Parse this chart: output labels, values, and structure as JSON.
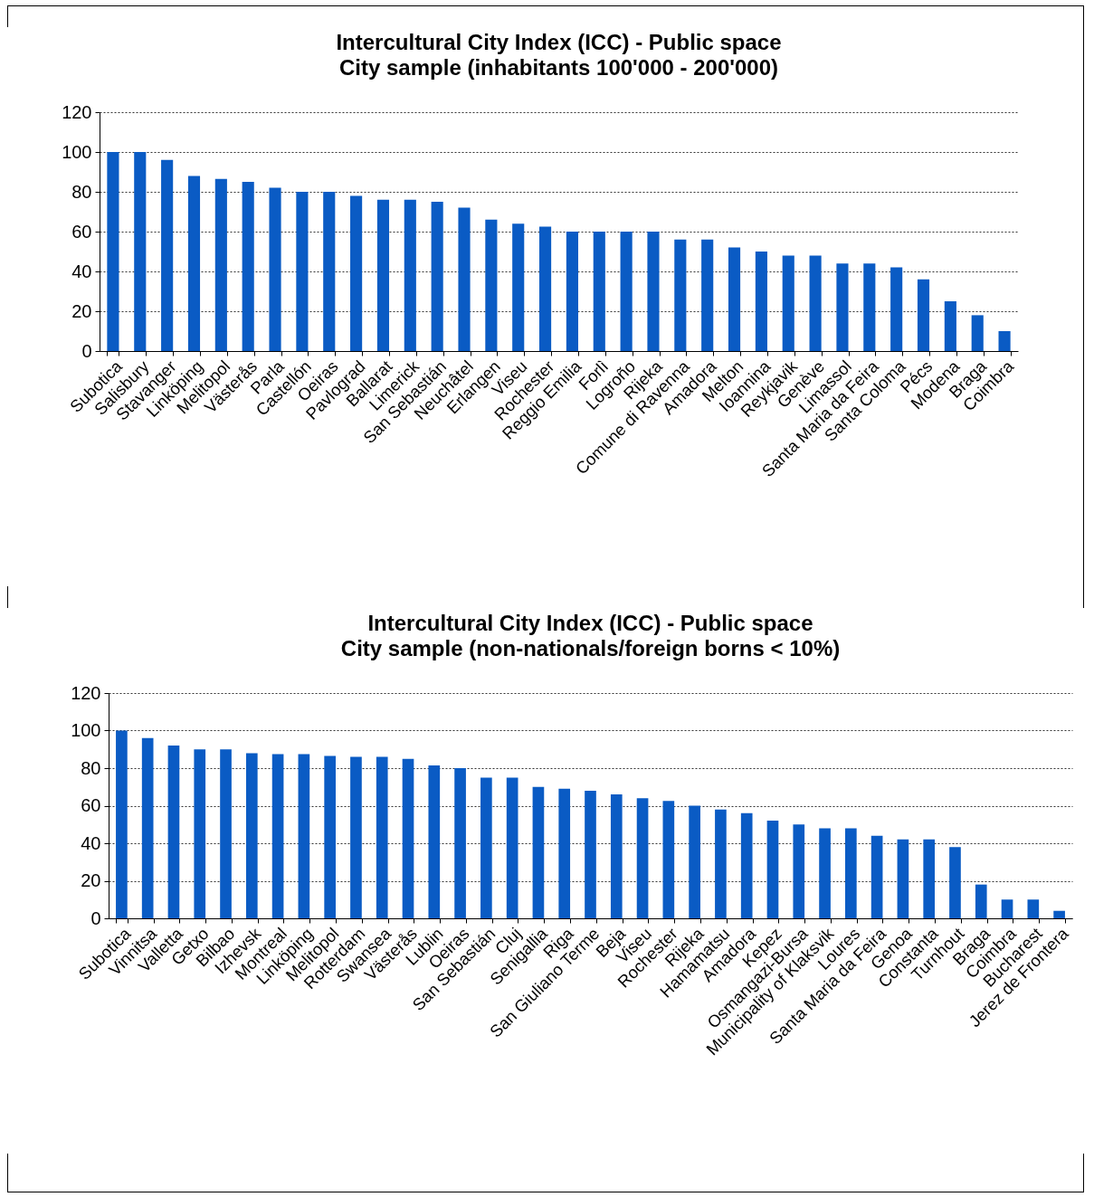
{
  "chart_data": [
    {
      "type": "bar",
      "title": "Intercultural City Index (ICC) - Public space",
      "subtitle": "City sample (inhabitants 100'000 - 200'000)",
      "categories": [
        "Subotica",
        "Salisbury",
        "Stavanger",
        "Linköping",
        "Melitopol",
        "Västerås",
        "Parla",
        "Castellón",
        "Oeiras",
        "Pavlograd",
        "Ballarat",
        "Limerick",
        "San Sebastián",
        "Neuchâtel",
        "Erlangen",
        "Viseu",
        "Rochester",
        "Reggio Emilia",
        "Forlì",
        "Logroño",
        "Rijeka",
        "Comune di Ravenna",
        "Amadora",
        "Melton",
        "Ioannina",
        "Reykjavik",
        "Genève",
        "Limassol",
        "Santa Maria da Feira",
        "Santa Coloma",
        "Pécs",
        "Modena",
        "Braga",
        "Coimbra"
      ],
      "values": [
        100,
        100,
        96,
        88,
        86.5,
        85,
        82,
        80,
        80,
        78,
        76,
        76,
        75,
        72,
        66,
        64,
        62.5,
        60,
        60,
        60,
        60,
        56,
        56,
        52,
        50,
        48,
        48,
        44,
        44,
        42,
        36,
        25,
        18,
        10
      ],
      "color": "#0a5bc4",
      "ylim": [
        0,
        120
      ],
      "yticks": [
        0,
        20,
        40,
        60,
        80,
        100,
        120
      ],
      "grid": "y"
    },
    {
      "type": "bar",
      "title": "Intercultural City Index (ICC) - Public space",
      "subtitle": "City sample (non-nationals/foreign borns < 10%)",
      "categories": [
        "Subotica",
        "Vinnitsa",
        "Valletta",
        "Getxo",
        "Bilbao",
        "Izhevsk",
        "Montreal",
        "Linköping",
        "Melitopol",
        "Rotterdam",
        "Swansea",
        "Västerås",
        "Lublin",
        "Oeiras",
        "San Sebastián",
        "Cluj",
        "Senigallia",
        "Riga",
        "San Giuliano Terme",
        "Beja",
        "Viseu",
        "Rochester",
        "Rijeka",
        "Hamamatsu",
        "Amadora",
        "Kepez",
        "Osmangazi-Bursa",
        "Municipality of Klaksvik",
        "Loures",
        "Santa Maria da Feira",
        "Genoa",
        "Constanta",
        "Turnhout",
        "Braga",
        "Coimbra",
        "Bucharest",
        "Jerez de Frontera"
      ],
      "values": [
        100,
        96,
        92,
        90,
        90,
        88,
        87.5,
        87.5,
        86.5,
        86,
        86,
        85,
        81.5,
        80,
        75,
        75,
        70,
        69,
        68,
        66,
        64,
        62.5,
        60,
        58,
        56,
        52,
        50,
        48,
        48,
        44,
        42,
        42,
        38,
        18,
        10,
        10,
        4
      ],
      "color": "#0a5bc4",
      "ylim": [
        0,
        120
      ],
      "yticks": [
        0,
        20,
        40,
        60,
        80,
        100,
        120
      ],
      "grid": "y"
    }
  ]
}
